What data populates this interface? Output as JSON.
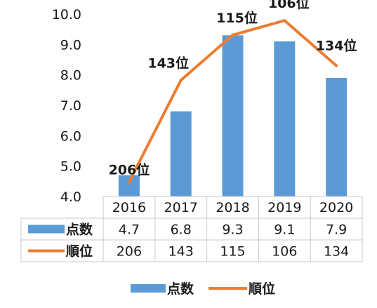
{
  "chart_data": {
    "type": "bar+line",
    "categories": [
      "2016",
      "2017",
      "2018",
      "2019",
      "2020"
    ],
    "series": [
      {
        "name": "点数",
        "type": "bar",
        "color": "#5b9bd5",
        "values": [
          4.7,
          6.8,
          9.3,
          9.1,
          7.9
        ],
        "table_values": [
          "4.7",
          "6.8",
          "9.3",
          "9.1",
          "7.9"
        ]
      },
      {
        "name": "順位",
        "type": "line",
        "color": "#ed7d31",
        "values": [
          206,
          143,
          115,
          106,
          134
        ],
        "table_values": [
          "206",
          "143",
          "115",
          "106",
          "134"
        ],
        "labels": [
          "206位",
          "143位",
          "115位",
          "106位",
          "134位"
        ]
      }
    ],
    "y_ticks": [
      "10.0",
      "9.0",
      "8.0",
      "7.0",
      "6.0",
      "5.0",
      "4.0"
    ],
    "ylim": [
      4.0,
      10.0
    ],
    "secondary_ylim": [
      215,
      102
    ],
    "data_table": true,
    "legend_position": "bottom",
    "grid": false
  }
}
